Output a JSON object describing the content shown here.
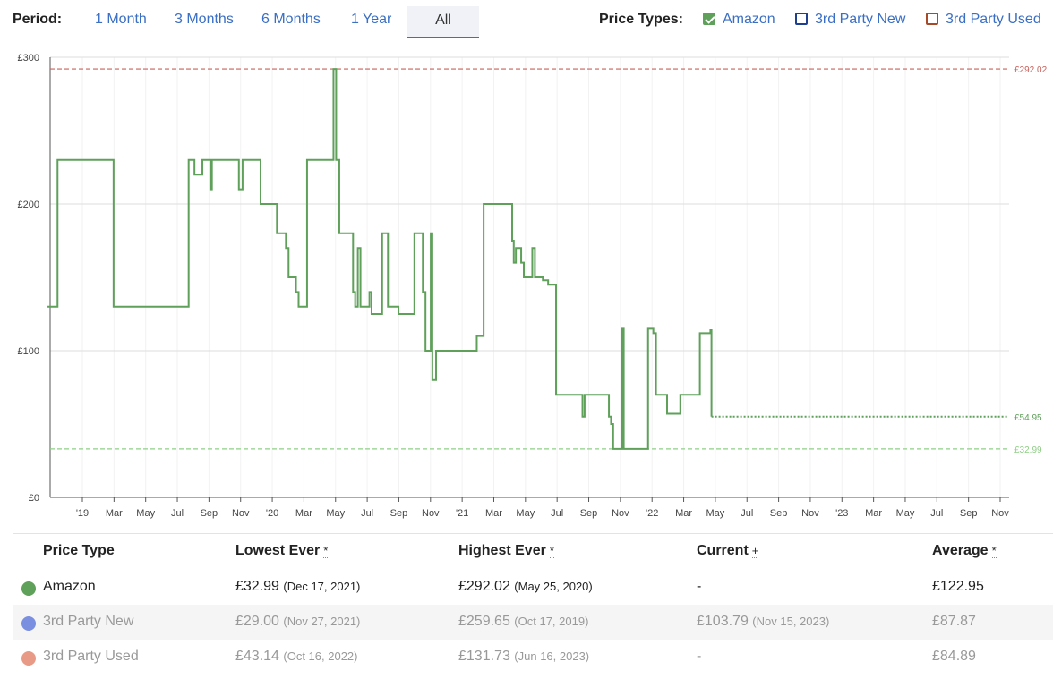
{
  "period": {
    "label": "Period:",
    "options": [
      "1 Month",
      "3 Months",
      "6 Months",
      "1 Year",
      "All"
    ],
    "selected": "All"
  },
  "price_types": {
    "label": "Price Types:",
    "items": [
      {
        "label": "Amazon",
        "checked": true,
        "color": "#5fa05a"
      },
      {
        "label": "3rd Party New",
        "checked": false,
        "color": "#1f3f8f"
      },
      {
        "label": "3rd Party Used",
        "checked": false,
        "color": "#a64a2a"
      }
    ]
  },
  "chart_data": {
    "type": "line",
    "y_tick_labels": [
      "£0",
      "£100",
      "£200",
      "£300"
    ],
    "ylim": [
      0,
      300
    ],
    "x_tick_labels": [
      "'19",
      "Mar",
      "May",
      "Jul",
      "Sep",
      "Nov",
      "'20",
      "Mar",
      "May",
      "Jul",
      "Sep",
      "Nov",
      "'21",
      "Mar",
      "May",
      "Jul",
      "Sep",
      "Nov",
      "'22",
      "Mar",
      "May",
      "Jul",
      "Sep",
      "Nov",
      "'23",
      "Mar",
      "May",
      "Jul",
      "Sep",
      "Nov"
    ],
    "xlim": [
      "2018-12",
      "2023-11"
    ],
    "grid": true,
    "reference_lines": [
      {
        "label": "£292.02",
        "value": 292.02,
        "color": "#c9605a",
        "style": "dashed"
      },
      {
        "label": "£54.95",
        "value": 54.95,
        "color": "#5fa05a",
        "style": "dotted"
      },
      {
        "label": "£32.99",
        "value": 32.99,
        "color": "#8fcf86",
        "style": "dashed"
      }
    ],
    "series": [
      {
        "name": "Amazon",
        "color": "#5fa05a",
        "step": true,
        "points": [
          [
            "2018-12-01",
            130
          ],
          [
            "2018-12-20",
            130
          ],
          [
            "2018-12-20",
            230
          ],
          [
            "2019-04-05",
            230
          ],
          [
            "2019-04-05",
            130
          ],
          [
            "2019-08-25",
            130
          ],
          [
            "2019-08-25",
            230
          ],
          [
            "2019-09-05",
            220
          ],
          [
            "2019-09-20",
            230
          ],
          [
            "2019-10-01",
            230
          ],
          [
            "2019-10-05",
            210
          ],
          [
            "2019-10-08",
            230
          ],
          [
            "2019-11-25",
            230
          ],
          [
            "2019-11-28",
            210
          ],
          [
            "2019-12-05",
            230
          ],
          [
            "2020-01-05",
            230
          ],
          [
            "2020-01-08",
            200
          ],
          [
            "2020-02-05",
            200
          ],
          [
            "2020-02-08",
            180
          ],
          [
            "2020-02-25",
            170
          ],
          [
            "2020-03-01",
            150
          ],
          [
            "2020-03-15",
            140
          ],
          [
            "2020-03-20",
            130
          ],
          [
            "2020-04-05",
            130
          ],
          [
            "2020-04-05",
            230
          ],
          [
            "2020-05-22",
            230
          ],
          [
            "2020-05-25",
            292
          ],
          [
            "2020-05-29",
            292
          ],
          [
            "2020-05-30",
            230
          ],
          [
            "2020-06-05",
            180
          ],
          [
            "2020-06-25",
            180
          ],
          [
            "2020-07-01",
            140
          ],
          [
            "2020-07-05",
            130
          ],
          [
            "2020-07-10",
            170
          ],
          [
            "2020-07-15",
            130
          ],
          [
            "2020-07-25",
            130
          ],
          [
            "2020-08-01",
            140
          ],
          [
            "2020-08-05",
            125
          ],
          [
            "2020-08-20",
            125
          ],
          [
            "2020-08-25",
            180
          ],
          [
            "2020-09-05",
            130
          ],
          [
            "2020-09-20",
            130
          ],
          [
            "2020-09-25",
            125
          ],
          [
            "2020-10-20",
            125
          ],
          [
            "2020-10-25",
            180
          ],
          [
            "2020-11-10",
            140
          ],
          [
            "2020-11-15",
            100
          ],
          [
            "2020-11-25",
            180
          ],
          [
            "2020-11-28",
            80
          ],
          [
            "2020-12-05",
            100
          ],
          [
            "2021-02-10",
            100
          ],
          [
            "2021-02-20",
            110
          ],
          [
            "2021-02-28",
            110
          ],
          [
            "2021-03-05",
            200
          ],
          [
            "2021-04-25",
            200
          ],
          [
            "2021-04-28",
            175
          ],
          [
            "2021-05-01",
            160
          ],
          [
            "2021-05-05",
            170
          ],
          [
            "2021-05-15",
            160
          ],
          [
            "2021-05-20",
            150
          ],
          [
            "2021-06-01",
            150
          ],
          [
            "2021-06-05",
            170
          ],
          [
            "2021-06-10",
            150
          ],
          [
            "2021-06-25",
            148
          ],
          [
            "2021-07-05",
            145
          ],
          [
            "2021-07-15",
            145
          ],
          [
            "2021-07-20",
            70
          ],
          [
            "2021-09-05",
            70
          ],
          [
            "2021-09-08",
            55
          ],
          [
            "2021-09-12",
            70
          ],
          [
            "2021-10-25",
            70
          ],
          [
            "2021-10-28",
            55
          ],
          [
            "2021-11-01",
            50
          ],
          [
            "2021-11-05",
            33
          ],
          [
            "2021-11-20",
            33
          ],
          [
            "2021-11-22",
            115
          ],
          [
            "2021-11-25",
            33
          ],
          [
            "2021-12-15",
            33
          ],
          [
            "2021-12-18",
            33
          ],
          [
            "2022-01-05",
            33
          ],
          [
            "2022-01-10",
            115
          ],
          [
            "2022-01-18",
            115
          ],
          [
            "2022-01-20",
            112
          ],
          [
            "2022-01-25",
            70
          ],
          [
            "2022-02-10",
            70
          ],
          [
            "2022-02-15",
            57
          ],
          [
            "2022-03-10",
            57
          ],
          [
            "2022-03-12",
            70
          ],
          [
            "2022-04-15",
            70
          ],
          [
            "2022-04-18",
            112
          ],
          [
            "2022-05-05",
            112
          ],
          [
            "2022-05-08",
            114
          ],
          [
            "2022-05-10",
            55
          ]
        ],
        "current_dotted_until": "2023-11-20"
      }
    ]
  },
  "table": {
    "headers": [
      {
        "text": "Price Type",
        "mark": ""
      },
      {
        "text": "Lowest Ever",
        "mark": "*"
      },
      {
        "text": "Highest Ever",
        "mark": "*"
      },
      {
        "text": "Current",
        "mark": "+"
      },
      {
        "text": "Average",
        "mark": "*"
      }
    ],
    "rows": [
      {
        "name": "Amazon",
        "dot": "#5fa05a",
        "muted": false,
        "lowest": "£32.99",
        "lowest_date": "(Dec 17, 2021)",
        "highest": "£292.02",
        "highest_date": "(May 25, 2020)",
        "current": "-",
        "current_date": "",
        "average": "£122.95"
      },
      {
        "name": "3rd Party New",
        "dot": "#7a8fe0",
        "muted": true,
        "lowest": "£29.00",
        "lowest_date": "(Nov 27, 2021)",
        "highest": "£259.65",
        "highest_date": "(Oct 17, 2019)",
        "current": "£103.79",
        "current_date": "(Nov 15, 2023)",
        "average": "£87.87"
      },
      {
        "name": "3rd Party Used",
        "dot": "#e89a86",
        "muted": true,
        "lowest": "£43.14",
        "lowest_date": "(Oct 16, 2022)",
        "highest": "£131.73",
        "highest_date": "(Jun 16, 2023)",
        "current": "-",
        "current_date": "",
        "average": "£84.89"
      }
    ]
  }
}
